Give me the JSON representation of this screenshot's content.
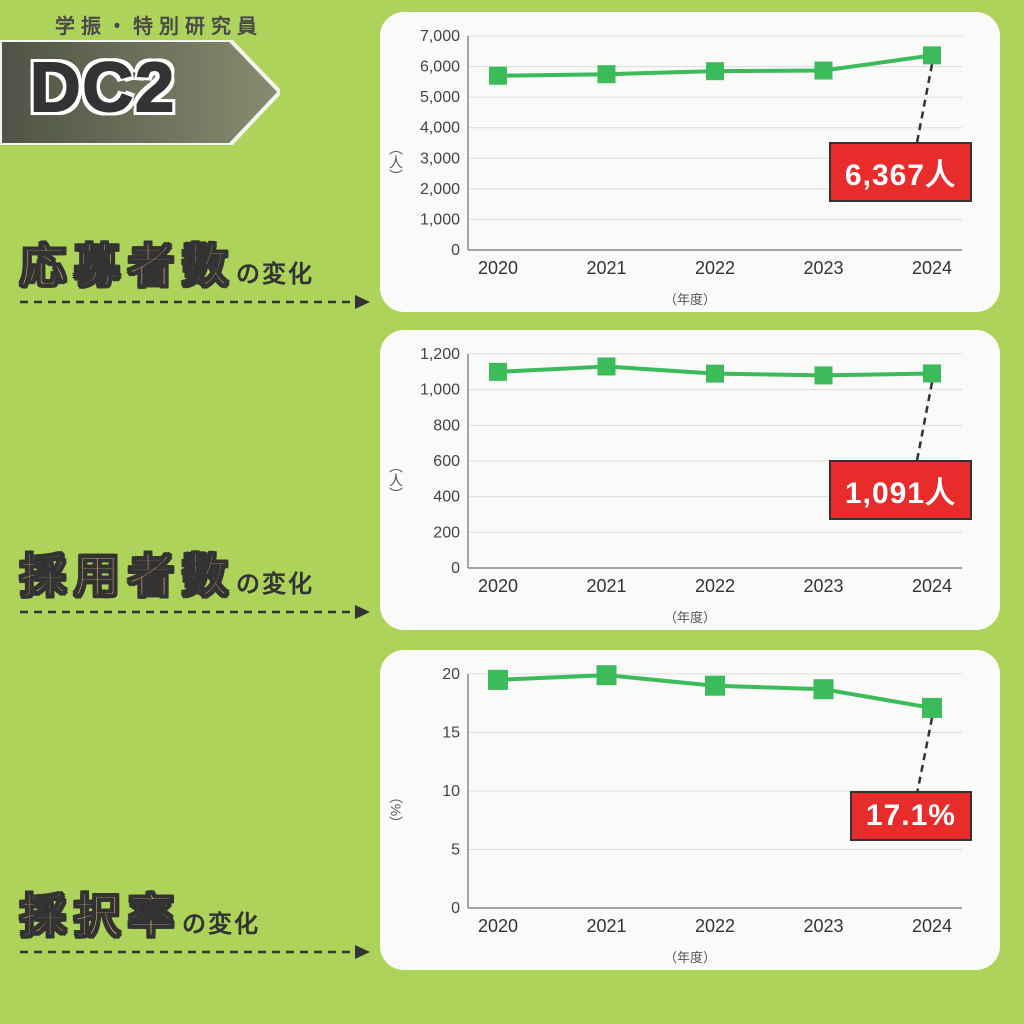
{
  "header": {
    "subtitle": "学振・特別研究員",
    "title": "DC2"
  },
  "colors": {
    "background": "#aed35a",
    "card_bg": "#fafaf8",
    "series": "#3cbb5a",
    "callout_bg": "#e82c2c",
    "callout_border": "#333333",
    "label_fill": "#f5c97a",
    "arrow_grad_start": "#555a4a",
    "arrow_grad_end": "#8a9070"
  },
  "x_axis": {
    "label": "（年度）",
    "categories": [
      "2020",
      "2021",
      "2022",
      "2023",
      "2024"
    ]
  },
  "sections": [
    {
      "label_big": "応募者数",
      "label_small": "の変化"
    },
    {
      "label_big": "採用者数",
      "label_small": "の変化"
    },
    {
      "label_big": "採択率",
      "label_small": "の変化"
    }
  ],
  "charts": [
    {
      "y_label": "（人）",
      "y_min": 0,
      "y_max": 7000,
      "y_step": 1000,
      "tick_format": "comma",
      "values": [
        5700,
        5750,
        5850,
        5870,
        6367
      ],
      "callout": "6,367人",
      "marker_size": 18
    },
    {
      "y_label": "（人）",
      "y_min": 0,
      "y_max": 1200,
      "y_step": 200,
      "tick_format": "comma",
      "values": [
        1100,
        1130,
        1090,
        1080,
        1091
      ],
      "callout": "1,091人",
      "marker_size": 18
    },
    {
      "y_label": "（%）",
      "y_min": 0,
      "y_max": 20,
      "y_step": 5,
      "tick_format": "plain",
      "values": [
        19.5,
        19.9,
        19.0,
        18.7,
        17.1
      ],
      "callout": "17.1%",
      "marker_size": 20
    }
  ],
  "layout": {
    "card_tops": [
      12,
      330,
      650
    ],
    "card_heights": [
      300,
      300,
      320
    ],
    "label_tops": [
      230,
      540,
      880
    ],
    "arrow_tops": [
      295,
      605,
      945
    ]
  }
}
